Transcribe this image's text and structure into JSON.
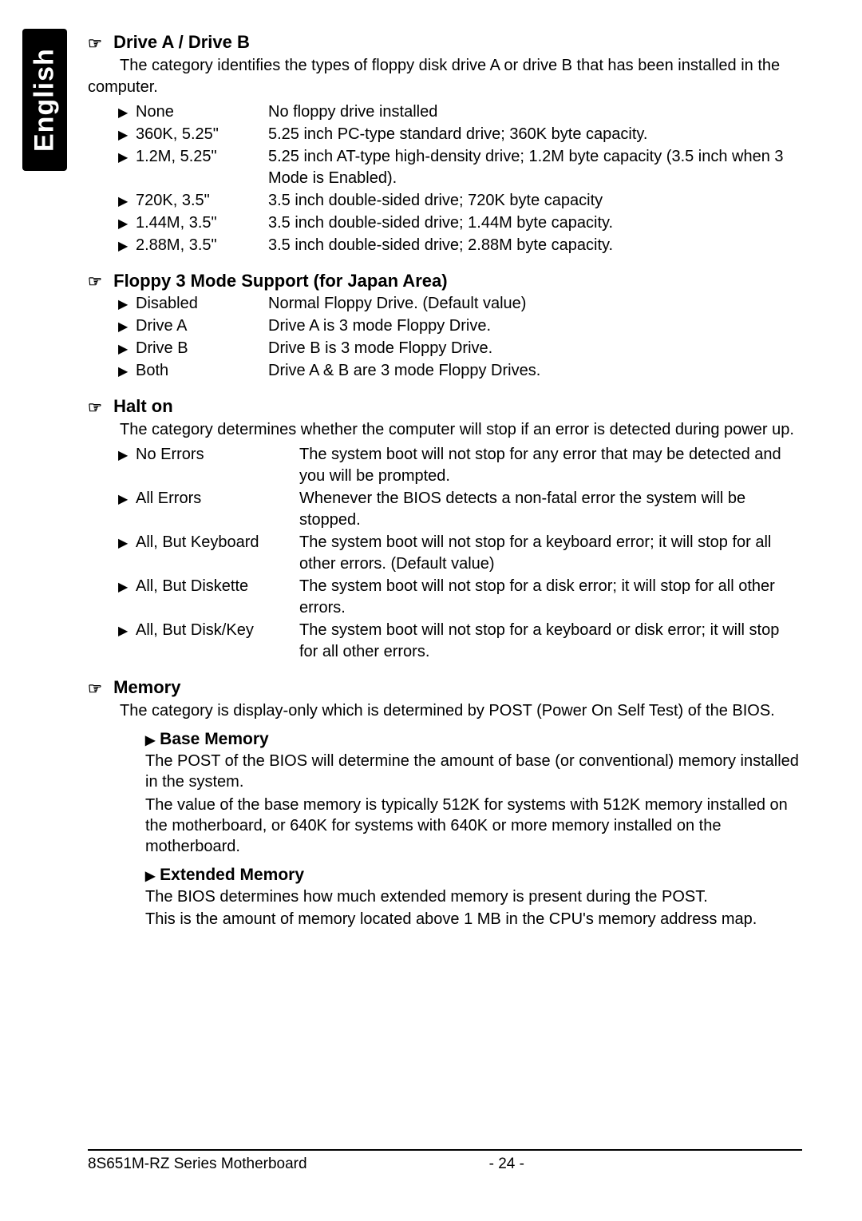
{
  "sideTab": "English",
  "driveAB": {
    "title": "Drive A / Drive B",
    "intro": "The category identifies the types of floppy disk drive A or drive B that has been installed in the computer.",
    "items": [
      {
        "label": "None",
        "desc": "No floppy drive installed"
      },
      {
        "label": "360K, 5.25\"",
        "desc": "5.25 inch PC-type standard drive; 360K byte capacity."
      },
      {
        "label": "1.2M, 5.25\"",
        "desc": "5.25 inch AT-type high-density drive; 1.2M byte capacity (3.5 inch when 3 Mode is Enabled)."
      },
      {
        "label": "720K, 3.5\"",
        "desc": "3.5 inch double-sided drive; 720K byte capacity"
      },
      {
        "label": "1.44M, 3.5\"",
        "desc": "3.5 inch double-sided drive; 1.44M byte capacity."
      },
      {
        "label": "2.88M, 3.5\"",
        "desc": "3.5 inch double-sided drive; 2.88M byte capacity."
      }
    ]
  },
  "floppy3": {
    "title": "Floppy 3 Mode Support (for Japan Area)",
    "items": [
      {
        "label": "Disabled",
        "desc": "Normal Floppy Drive. (Default value)"
      },
      {
        "label": "Drive A",
        "desc": "Drive A is 3 mode Floppy Drive."
      },
      {
        "label": "Drive B",
        "desc": "Drive B is 3 mode Floppy Drive."
      },
      {
        "label": "Both",
        "desc": "Drive A & B are 3 mode Floppy Drives."
      }
    ]
  },
  "halt": {
    "title": "Halt on",
    "intro": "The category determines whether the computer will stop if an error is detected during power up.",
    "items": [
      {
        "label": "No Errors",
        "desc": "The system boot will not stop for any error that may be detected and  you will be prompted."
      },
      {
        "label": "All Errors",
        "desc": "Whenever the BIOS detects a non-fatal error the system will be stopped."
      },
      {
        "label": "All, But Keyboard",
        "desc": "The system boot will not stop for a keyboard error; it will stop for all other errors. (Default value)"
      },
      {
        "label": "All, But Diskette",
        "desc": "The system boot will not stop for a disk error; it will stop for all other errors."
      },
      {
        "label": "All, But Disk/Key",
        "desc": "The system boot will not stop for a keyboard or disk error; it will stop for all other errors."
      }
    ]
  },
  "memory": {
    "title": "Memory",
    "intro": "The category is display-only which is determined by POST (Power On Self Test) of the BIOS.",
    "base": {
      "heading": "Base Memory",
      "p1": "The POST of the BIOS will determine the amount of base (or conventional) memory installed in the system.",
      "p2": "The value of the base memory is typically 512K for systems with 512K memory installed on the motherboard, or 640K for systems with 640K or more memory installed on the motherboard."
    },
    "extended": {
      "heading": "Extended Memory",
      "p1": "The BIOS determines how much extended memory is present during the POST.",
      "p2": "This is the amount of memory located above 1 MB in the CPU's memory address map."
    }
  },
  "footer": {
    "left": "8S651M-RZ Series Motherboard",
    "center": "- 24 -"
  },
  "glyphs": {
    "hand": "☞",
    "tri": "▶"
  }
}
